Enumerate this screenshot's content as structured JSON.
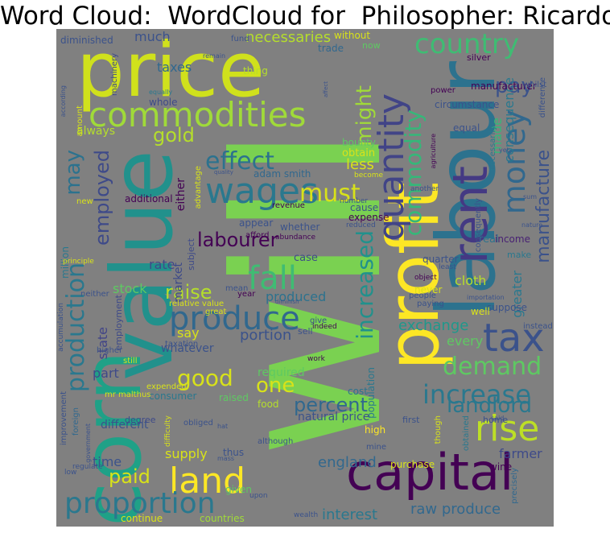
{
  "title": "Word Cloud:  WordCloud for  Philosopher: Ricardo",
  "background": "#808080",
  "palette": {
    "yellow": "#d8e219",
    "lime": "#a0da39",
    "green": "#5ec962",
    "mint": "#3fbc73",
    "teal": "#1fa187",
    "cyan": "#1f968b",
    "blue": "#2a788e",
    "steel": "#31688e",
    "indigo": "#3b528b",
    "violet": "#443983",
    "purple": "#482173",
    "dark": "#440154"
  },
  "words": [
    {
      "text": "will",
      "color": "#7ad151"
    },
    {
      "text": "price",
      "color": "#d0e11c"
    },
    {
      "text": "value",
      "color": "#21918c"
    },
    {
      "text": "labour",
      "color": "#2c728e"
    },
    {
      "text": "profit",
      "color": "#fde725"
    },
    {
      "text": "corn",
      "color": "#1fa187"
    },
    {
      "text": "capital",
      "color": "#440154"
    },
    {
      "text": "commodities",
      "color": "#a0da39"
    },
    {
      "text": "country",
      "color": "#3fbc73"
    },
    {
      "text": "quantity",
      "color": "#414487"
    },
    {
      "text": "rent",
      "color": "#443983"
    },
    {
      "text": "tax",
      "color": "#3b528b"
    },
    {
      "text": "wages",
      "color": "#2a788e"
    },
    {
      "text": "land",
      "color": "#fde725"
    },
    {
      "text": "produce",
      "color": "#31688e"
    },
    {
      "text": "rise",
      "color": "#bddf26"
    },
    {
      "text": "fall",
      "color": "#3fbc73"
    },
    {
      "text": "money",
      "color": "#31688e"
    },
    {
      "text": "proportion",
      "color": "#2a788e"
    },
    {
      "text": "increase",
      "color": "#2a788e"
    },
    {
      "text": "effect",
      "color": "#2c728e"
    },
    {
      "text": "must",
      "color": "#d8e219"
    },
    {
      "text": "production",
      "color": "#2a788e"
    },
    {
      "text": "increased",
      "color": "#21918c"
    },
    {
      "text": "commodity",
      "color": "#35b779"
    },
    {
      "text": "demand",
      "color": "#5ec962"
    },
    {
      "text": "pay",
      "color": "#3b528b"
    },
    {
      "text": "may",
      "color": "#2c728e"
    },
    {
      "text": "labourer",
      "color": "#440154"
    },
    {
      "text": "good",
      "color": "#d8e219"
    },
    {
      "text": "landlord",
      "color": "#2a788e"
    },
    {
      "text": "one",
      "color": "#d8e219"
    },
    {
      "text": "paid",
      "color": "#d8e219"
    },
    {
      "text": "might",
      "color": "#a0da39"
    },
    {
      "text": "raise",
      "color": "#b5de2b"
    },
    {
      "text": "employed",
      "color": "#3e4a89"
    },
    {
      "text": "percent",
      "color": "#31688e"
    },
    {
      "text": "gold",
      "color": "#b5de2b"
    },
    {
      "text": "manufacture",
      "color": "#3b528b"
    },
    {
      "text": "less",
      "color": "#d8e219"
    },
    {
      "text": "exchange",
      "color": "#1f988b"
    },
    {
      "text": "portion",
      "color": "#3b528b"
    },
    {
      "text": "england",
      "color": "#31688e"
    },
    {
      "text": "raw produce",
      "color": "#31688e"
    },
    {
      "text": "interest",
      "color": "#2a788e"
    },
    {
      "text": "necessaries",
      "color": "#b5de2b"
    },
    {
      "text": "supply",
      "color": "#d8e219"
    },
    {
      "text": "rate",
      "color": "#3e4a89"
    },
    {
      "text": "stock",
      "color": "#5ec962"
    },
    {
      "text": "produced",
      "color": "#2c728e"
    },
    {
      "text": "state",
      "color": "#414487"
    },
    {
      "text": "greater",
      "color": "#2a788e"
    },
    {
      "text": "farmer",
      "color": "#3e4a89"
    },
    {
      "text": "consequence",
      "color": "#2a788e"
    },
    {
      "text": "cloth",
      "color": "#b5de2b"
    },
    {
      "text": "time",
      "color": "#3b528b"
    },
    {
      "text": "every",
      "color": "#5ec962"
    },
    {
      "text": "made",
      "color": "#35b779"
    },
    {
      "text": "say",
      "color": "#d8e219"
    },
    {
      "text": "much",
      "color": "#3b528b"
    },
    {
      "text": "taxes",
      "color": "#31688e"
    },
    {
      "text": "part",
      "color": "#3e4a89"
    },
    {
      "text": "obtain",
      "color": "#d8e219"
    },
    {
      "text": "always",
      "color": "#b5de2b"
    },
    {
      "text": "different",
      "color": "#3b528b"
    },
    {
      "text": "market",
      "color": "#3e4a89"
    },
    {
      "text": "real",
      "color": "#2c728e"
    },
    {
      "text": "natural price",
      "color": "#3b528b"
    },
    {
      "text": "either",
      "color": "#440154"
    },
    {
      "text": "whatever",
      "color": "#3b528b"
    },
    {
      "text": "required",
      "color": "#5ec962"
    },
    {
      "text": "case",
      "color": "#3e4a89"
    },
    {
      "text": "diminished",
      "color": "#3b528b"
    },
    {
      "text": "adam smith",
      "color": "#31688e"
    },
    {
      "text": "trade",
      "color": "#31688e"
    },
    {
      "text": "bounty",
      "color": "#5ec962"
    },
    {
      "text": "circumstance",
      "color": "#3b528b"
    },
    {
      "text": "thing",
      "color": "#b5de2b"
    },
    {
      "text": "manufacturer",
      "color": "#440154"
    },
    {
      "text": "additional",
      "color": "#440154"
    },
    {
      "text": "whole",
      "color": "#3e4a89"
    },
    {
      "text": "without",
      "color": "#d8e219"
    },
    {
      "text": "cause",
      "color": "#3b528b"
    },
    {
      "text": "expense",
      "color": "#440154"
    },
    {
      "text": "quarter",
      "color": "#3b528b"
    },
    {
      "text": "income",
      "color": "#482173"
    },
    {
      "text": "million",
      "color": "#2a788e"
    },
    {
      "text": "equal",
      "color": "#3b528b"
    },
    {
      "text": "suppose",
      "color": "#3b528b"
    },
    {
      "text": "appear",
      "color": "#3b528b"
    },
    {
      "text": "well",
      "color": "#d8e219"
    },
    {
      "text": "whether",
      "color": "#3b528b"
    },
    {
      "text": "high",
      "color": "#fde725"
    },
    {
      "text": "food",
      "color": "#b5de2b"
    },
    {
      "text": "raised",
      "color": "#5ec962"
    },
    {
      "text": "wine",
      "color": "#440154"
    },
    {
      "text": "purchase",
      "color": "#d8e219"
    },
    {
      "text": "cost",
      "color": "#2c728e"
    },
    {
      "text": "consumer",
      "color": "#2a788e"
    },
    {
      "text": "given",
      "color": "#5ec962"
    },
    {
      "text": "population",
      "color": "#2a788e"
    },
    {
      "text": "home",
      "color": "#3b528b"
    },
    {
      "text": "thus",
      "color": "#3b528b"
    },
    {
      "text": "continue",
      "color": "#d8e219"
    },
    {
      "text": "countries",
      "color": "#a0da39"
    },
    {
      "text": "relative value",
      "color": "#d8e219"
    },
    {
      "text": "never",
      "color": "#d8e219"
    },
    {
      "text": "make",
      "color": "#2a788e"
    },
    {
      "text": "mr malthus",
      "color": "#d8e219"
    },
    {
      "text": "subject",
      "color": "#3e4a89"
    },
    {
      "text": "advantage",
      "color": "#d8e219"
    },
    {
      "text": "employment",
      "color": "#3e4a89"
    },
    {
      "text": "fund",
      "color": "#3b528b"
    },
    {
      "text": "now",
      "color": "#5ec962"
    },
    {
      "text": "silver",
      "color": "#440154"
    },
    {
      "text": "power",
      "color": "#440154"
    },
    {
      "text": "machinery",
      "color": "#3e4a89"
    },
    {
      "text": "amount",
      "color": "#d8e219"
    },
    {
      "text": "accumulation",
      "color": "#3b528b"
    },
    {
      "text": "neither",
      "color": "#3b528b"
    },
    {
      "text": "higher",
      "color": "#3b528b"
    },
    {
      "text": "taxation",
      "color": "#3b528b"
    },
    {
      "text": "improvement",
      "color": "#3b528b"
    },
    {
      "text": "degree",
      "color": "#3e4a89"
    },
    {
      "text": "foreign",
      "color": "#31688e"
    },
    {
      "text": "expended",
      "color": "#d8e219"
    },
    {
      "text": "obliged",
      "color": "#3b528b"
    },
    {
      "text": "although",
      "color": "#3b528b"
    },
    {
      "text": "agriculture",
      "color": "#440154"
    },
    {
      "text": "though",
      "color": "#d8e219"
    },
    {
      "text": "obtained",
      "color": "#2a788e"
    },
    {
      "text": "precisely",
      "color": "#31688e"
    },
    {
      "text": "wealth",
      "color": "#3b528b"
    },
    {
      "text": "upon",
      "color": "#3b528b"
    },
    {
      "text": "abundance",
      "color": "#440154"
    },
    {
      "text": "revenue",
      "color": "#440154"
    },
    {
      "text": "number",
      "color": "#3b528b"
    },
    {
      "text": "reduced",
      "color": "#3b528b"
    },
    {
      "text": "afford",
      "color": "#440154"
    },
    {
      "text": "mean",
      "color": "#3b528b"
    },
    {
      "text": "year",
      "color": "#440154"
    },
    {
      "text": "great",
      "color": "#d8e219"
    },
    {
      "text": "give",
      "color": "#3b528b"
    },
    {
      "text": "indeed",
      "color": "#440154"
    },
    {
      "text": "work",
      "color": "#440154"
    },
    {
      "text": "sell",
      "color": "#3b528b"
    },
    {
      "text": "still",
      "color": "#d8e219"
    },
    {
      "text": "paying",
      "color": "#3b528b"
    },
    {
      "text": "people",
      "color": "#3b528b"
    },
    {
      "text": "instead",
      "color": "#3b528b"
    },
    {
      "text": "said",
      "color": "#3b528b"
    },
    {
      "text": "first",
      "color": "#3b528b"
    },
    {
      "text": "difficulty",
      "color": "#d8e219"
    },
    {
      "text": "regulate",
      "color": "#3b528b"
    },
    {
      "text": "principle",
      "color": "#d8e219"
    },
    {
      "text": "necessarily",
      "color": "#2a788e"
    },
    {
      "text": "object",
      "color": "#440154"
    },
    {
      "text": "least",
      "color": "#3b528b"
    },
    {
      "text": "equally",
      "color": "#2a788e"
    },
    {
      "text": "whilst",
      "color": "#3b528b"
    },
    {
      "text": "according",
      "color": "#3b528b"
    },
    {
      "text": "remain",
      "color": "#3b528b"
    },
    {
      "text": "difference",
      "color": "#3b528b"
    },
    {
      "text": "become",
      "color": "#d8e219"
    },
    {
      "text": "sum",
      "color": "#3b528b"
    },
    {
      "text": "yet",
      "color": "#3b528b"
    },
    {
      "text": "new",
      "color": "#d8e219"
    },
    {
      "text": "mine",
      "color": "#3b528b"
    },
    {
      "text": "low",
      "color": "#3b528b"
    },
    {
      "text": "importation",
      "color": "#3b528b"
    },
    {
      "text": "mass",
      "color": "#3b528b"
    },
    {
      "text": "hat",
      "color": "#3b528b"
    },
    {
      "text": "nature",
      "color": "#3b528b"
    },
    {
      "text": "another",
      "color": "#3b528b"
    },
    {
      "text": "quality",
      "color": "#3b528b"
    },
    {
      "text": "affect",
      "color": "#3b528b"
    },
    {
      "text": "diminish",
      "color": "#3b528b"
    },
    {
      "text": "consequently",
      "color": "#3b528b"
    },
    {
      "text": "government",
      "color": "#3b528b"
    }
  ]
}
